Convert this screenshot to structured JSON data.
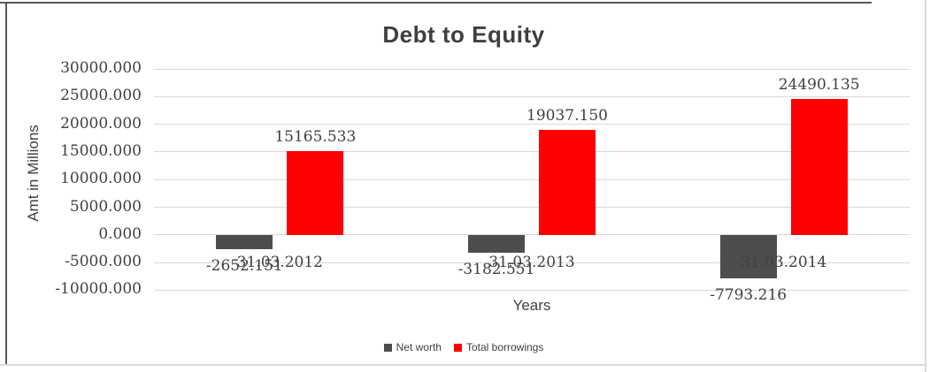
{
  "chart_data": {
    "type": "bar",
    "title": "Debt to Equity",
    "xlabel": "Years",
    "ylabel": "Amt in Millions",
    "categories": [
      "31.03.2012",
      "31.03.2013",
      "31.03.2014"
    ],
    "series": [
      {
        "name": "Net worth",
        "color": "#4d4d4d",
        "values": [
          -2652.151,
          -3182.551,
          -7793.216
        ],
        "labels": [
          "-2652.151",
          "-3182.551",
          "-7793.216"
        ]
      },
      {
        "name": "Total borrowings",
        "color": "#ff0000",
        "values": [
          15165.533,
          19037.15,
          24490.135
        ],
        "labels": [
          "15165.533",
          "19037.150",
          "24490.135"
        ]
      }
    ],
    "y_axis": {
      "min": -10000,
      "max": 30000,
      "step": 5000,
      "tick_format_decimals": 3
    },
    "grid": true,
    "legend_position": "bottom",
    "colors": {
      "gridline": "#d9d9d9",
      "text": "#404040",
      "title_text": "#3f3f3f",
      "frame_dark": "#595959",
      "frame_light": "#d9d9d9"
    }
  }
}
